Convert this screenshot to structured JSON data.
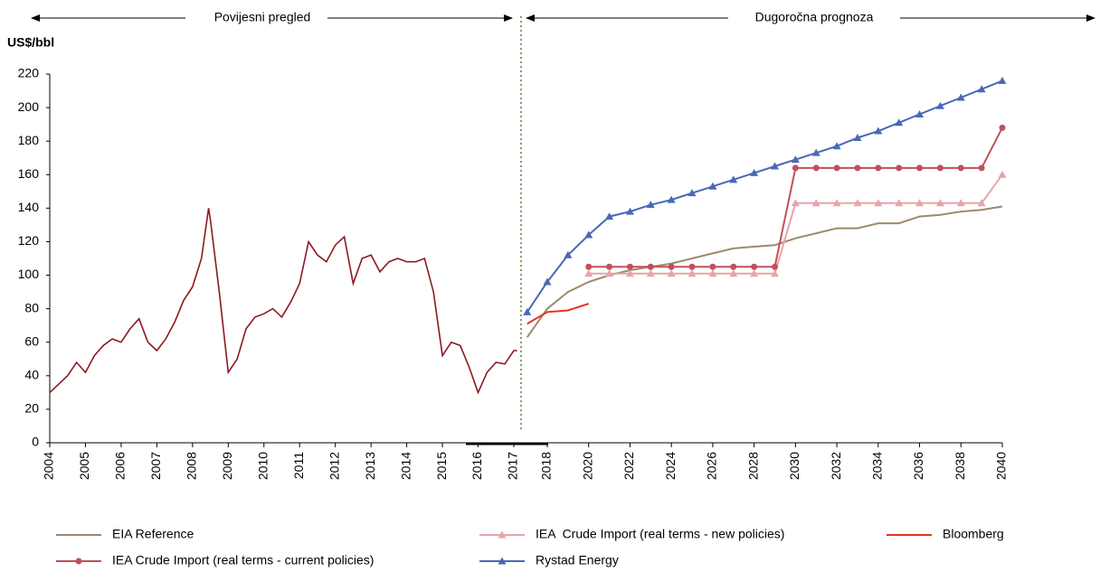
{
  "chart_data": {
    "type": "line",
    "ylabel": "US$/bbl",
    "annotations": [
      "Povijesni pregled",
      "Dugoročna prognoza"
    ],
    "ylim": [
      0,
      220
    ],
    "yticks": [
      0,
      20,
      40,
      60,
      80,
      100,
      120,
      140,
      160,
      180,
      200,
      220
    ],
    "xlim": [
      2004,
      2040
    ],
    "xticks": [
      2004,
      2005,
      2006,
      2007,
      2008,
      2009,
      2010,
      2011,
      2012,
      2013,
      2014,
      2015,
      2016,
      2017,
      2018,
      2020,
      2022,
      2024,
      2026,
      2028,
      2030,
      2032,
      2034,
      2036,
      2038,
      2040
    ],
    "grid": false,
    "series": [
      {
        "color": "#8b1a1f",
        "x": [
          2004,
          2004.25,
          2004.5,
          2004.75,
          2005,
          2005.25,
          2005.5,
          2005.75,
          2006,
          2006.25,
          2006.5,
          2006.75,
          2007,
          2007.25,
          2007.5,
          2007.75,
          2008,
          2008.25,
          2008.45,
          2008.5,
          2008.75,
          2009,
          2009.25,
          2009.5,
          2009.75,
          2010,
          2010.25,
          2010.5,
          2010.75,
          2011,
          2011.25,
          2011.5,
          2011.75,
          2012,
          2012.25,
          2012.5,
          2012.75,
          2013,
          2013.25,
          2013.5,
          2013.75,
          2014,
          2014.25,
          2014.5,
          2014.75,
          2015,
          2015.25,
          2015.5,
          2015.75,
          2016,
          2016.25,
          2016.5,
          2016.75,
          2017,
          2017.1
        ],
        "values": [
          30,
          35,
          40,
          48,
          42,
          52,
          58,
          62,
          60,
          68,
          74,
          60,
          55,
          62,
          72,
          85,
          93,
          110,
          140,
          133,
          90,
          42,
          50,
          68,
          75,
          77,
          80,
          75,
          84,
          95,
          120,
          112,
          108,
          118,
          123,
          95,
          110,
          112,
          102,
          108,
          110,
          108,
          108,
          110,
          90,
          52,
          60,
          58,
          45,
          30,
          42,
          48,
          47,
          55,
          55
        ]
      },
      {
        "name": "EIA Reference",
        "color": "#9a8b6c",
        "x": [
          2017.4,
          2018,
          2019,
          2020,
          2021,
          2022,
          2023,
          2024,
          2025,
          2026,
          2027,
          2028,
          2029,
          2030,
          2031,
          2032,
          2033,
          2034,
          2035,
          2036,
          2037,
          2038,
          2039,
          2040
        ],
        "values": [
          63,
          80,
          90,
          96,
          100,
          103,
          105,
          107,
          110,
          113,
          116,
          117,
          118,
          122,
          125,
          128,
          128,
          131,
          131,
          135,
          136,
          138,
          139,
          141
        ]
      },
      {
        "name": "IEA  Crude Import (real terms - new policies)",
        "color": "#e8a3aa",
        "marker": "triangle",
        "x": [
          2020,
          2021,
          2022,
          2023,
          2024,
          2025,
          2026,
          2027,
          2028,
          2029,
          2030,
          2031,
          2032,
          2033,
          2034,
          2035,
          2036,
          2037,
          2038,
          2039,
          2040
        ],
        "values": [
          101,
          101,
          101,
          101,
          101,
          101,
          101,
          101,
          101,
          101,
          143,
          143,
          143,
          143,
          143,
          143,
          143,
          143,
          143,
          143,
          160
        ]
      },
      {
        "name": "Bloomberg",
        "color": "#e03322",
        "x": [
          2017.4,
          2018,
          2019,
          2020
        ],
        "values": [
          71,
          78,
          79,
          83
        ]
      },
      {
        "name": "IEA Crude Import (real terms - current policies)",
        "color": "#c0505c",
        "marker": "circle",
        "x": [
          2020,
          2021,
          2022,
          2023,
          2024,
          2025,
          2026,
          2027,
          2028,
          2029,
          2030,
          2031,
          2032,
          2033,
          2034,
          2035,
          2036,
          2037,
          2038,
          2039,
          2040
        ],
        "values": [
          105,
          105,
          105,
          105,
          105,
          105,
          105,
          105,
          105,
          105,
          164,
          164,
          164,
          164,
          164,
          164,
          164,
          164,
          164,
          164,
          188
        ]
      },
      {
        "name": "Rystad Energy",
        "color": "#4a68b5",
        "marker": "triangle",
        "x": [
          2017.4,
          2018,
          2019,
          2020,
          2021,
          2022,
          2023,
          2024,
          2025,
          2026,
          2027,
          2028,
          2029,
          2030,
          2031,
          2032,
          2033,
          2034,
          2035,
          2036,
          2037,
          2038,
          2039,
          2040
        ],
        "values": [
          78,
          96,
          112,
          124,
          135,
          138,
          142,
          145,
          149,
          153,
          157,
          161,
          165,
          169,
          173,
          177,
          182,
          186,
          191,
          196,
          201,
          206,
          211,
          216
        ]
      }
    ]
  }
}
